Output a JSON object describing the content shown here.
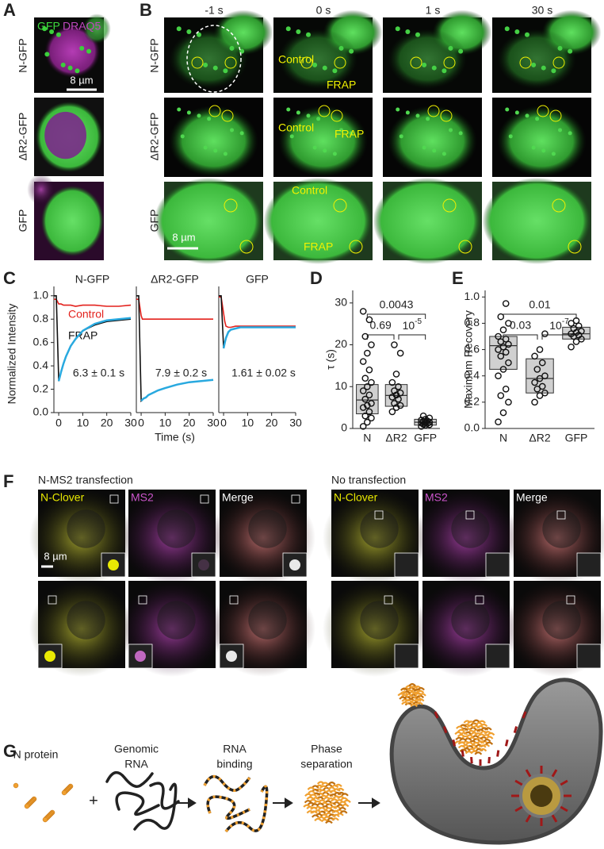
{
  "panel_labels": [
    "A",
    "B",
    "C",
    "D",
    "E",
    "F",
    "G"
  ],
  "panel_a": {
    "legend": [
      "GFP",
      "DRAQ5"
    ],
    "rows": [
      "N-GFP",
      "ΔR2-GFP",
      "GFP"
    ],
    "scale_bar": "8 µm"
  },
  "panel_b": {
    "columns": [
      "-1 s",
      "0 s",
      "1 s",
      "30 s"
    ],
    "rows": [
      {
        "label": "N-GFP",
        "annotations": [
          "Control",
          "FRAP"
        ]
      },
      {
        "label": "ΔR2-GFP",
        "annotations": [
          "Control",
          "FRAP"
        ]
      },
      {
        "label": "GFP",
        "annotations": [
          "Control",
          "FRAP"
        ]
      }
    ],
    "scale_bar": "8 µm"
  },
  "panel_f": {
    "groups": [
      {
        "title": "N-MS2 transfection",
        "columns": [
          "N-Clover",
          "MS2",
          "Merge"
        ]
      },
      {
        "title": "No transfection",
        "columns": [
          "N-Clover",
          "MS2",
          "Merge"
        ]
      }
    ],
    "scale_bar": "8 µm"
  },
  "panel_g": {
    "steps": [
      [
        "N protein"
      ],
      [
        "Genomic",
        "RNA"
      ],
      [
        "RNA",
        "binding"
      ],
      [
        "Phase",
        "separation"
      ]
    ],
    "plus": "+"
  },
  "chart_data": [
    {
      "type": "line",
      "title": "N-GFP",
      "annotation": "6.3 ± 0.1 s",
      "y_label": "Normalized Intensity",
      "x": [
        -2,
        -1,
        0,
        0.5,
        1,
        2,
        3,
        5,
        7,
        10,
        15,
        20,
        25,
        30
      ],
      "xlim": [
        -2,
        30
      ],
      "xticks": [
        0,
        10,
        20,
        30
      ],
      "ylim": [
        0,
        1.08
      ],
      "yticks": [
        {
          "value": 0,
          "label": "0.0"
        },
        {
          "value": 0.2,
          "label": "0.2"
        },
        {
          "value": 0.4,
          "label": "0.4"
        },
        {
          "value": 0.6,
          "label": "0.6"
        },
        {
          "value": 0.8,
          "label": "0.8"
        },
        {
          "value": 1,
          "label": "1.0"
        }
      ],
      "series": [
        {
          "name": "Control",
          "color": "#e3211c",
          "values": [
            0.97,
            0.97,
            0.93,
            0.93,
            0.93,
            0.92,
            0.92,
            0.92,
            0.91,
            0.92,
            0.92,
            0.91,
            0.91,
            0.92
          ]
        },
        {
          "name": "FRAP",
          "color": "#111111",
          "values": [
            1.0,
            1.0,
            0.27,
            0.31,
            0.35,
            0.42,
            0.48,
            0.57,
            0.63,
            0.7,
            0.75,
            0.78,
            0.79,
            0.8
          ]
        },
        {
          "color": "#29a9df",
          "values": [
            null,
            null,
            0.27,
            0.31,
            0.35,
            0.42,
            0.48,
            0.57,
            0.63,
            0.7,
            0.76,
            0.79,
            0.8,
            0.81
          ]
        }
      ]
    },
    {
      "type": "line",
      "title": "ΔR2-GFP",
      "annotation": "7.9 ± 0.2 s",
      "x_label": "Time (s)",
      "x": [
        -2,
        -1,
        0,
        0.5,
        1,
        2,
        3,
        5,
        7,
        10,
        15,
        20,
        25,
        30
      ],
      "xlim": [
        -2,
        30
      ],
      "xticks": [
        0,
        10,
        20,
        30
      ],
      "ylim": [
        0,
        1.08
      ],
      "series": [
        {
          "color": "#e3211c",
          "values": [
            0.97,
            0.97,
            0.83,
            0.8,
            0.8,
            0.8,
            0.8,
            0.8,
            0.8,
            0.8,
            0.8,
            0.8,
            0.8,
            0.8
          ]
        },
        {
          "color": "#111111",
          "values": [
            1.0,
            1.0,
            0.1,
            0.11,
            0.12,
            0.13,
            0.15,
            0.17,
            0.19,
            0.21,
            0.24,
            0.26,
            0.27,
            0.28
          ]
        },
        {
          "color": "#29a9df",
          "values": [
            null,
            null,
            0.1,
            0.11,
            0.12,
            0.13,
            0.15,
            0.17,
            0.19,
            0.21,
            0.24,
            0.26,
            0.27,
            0.28
          ]
        }
      ]
    },
    {
      "type": "line",
      "title": "GFP",
      "annotation": "1.61 ± 0.02 s",
      "x": [
        -2,
        -1,
        0,
        0.5,
        1,
        2,
        3,
        5,
        7,
        10,
        15,
        20,
        25,
        30
      ],
      "xlim": [
        -2,
        30
      ],
      "xticks": [
        0,
        10,
        20,
        30
      ],
      "ylim": [
        0,
        1.08
      ],
      "series": [
        {
          "color": "#e3211c",
          "values": [
            0.99,
            0.99,
            0.85,
            0.78,
            0.74,
            0.73,
            0.73,
            0.74,
            0.74,
            0.74,
            0.74,
            0.74,
            0.74,
            0.74
          ]
        },
        {
          "color": "#111111",
          "values": [
            1.0,
            1.0,
            0.55,
            0.6,
            0.64,
            0.69,
            0.71,
            0.72,
            0.73,
            0.73,
            0.73,
            0.73,
            0.73,
            0.73
          ]
        },
        {
          "color": "#29a9df",
          "values": [
            null,
            null,
            0.55,
            0.6,
            0.64,
            0.69,
            0.71,
            0.72,
            0.73,
            0.73,
            0.73,
            0.73,
            0.73,
            0.73
          ]
        }
      ]
    },
    {
      "type": "box",
      "y_label": "τ (s)",
      "categories": [
        "N",
        "ΔR2",
        "GFP"
      ],
      "ylim": [
        0,
        33
      ],
      "yticks": [
        0,
        10,
        20,
        30
      ],
      "color": "#d0d0d0",
      "boxes": [
        {
          "q1": 3.5,
          "median": 6.8,
          "q3": 10.5
        },
        {
          "q1": 5.3,
          "median": 7.9,
          "q3": 10.5
        },
        {
          "q1": 0.8,
          "median": 1.5,
          "q3": 2.2
        }
      ],
      "points": [
        [
          0.5,
          1.5,
          2.5,
          3,
          4,
          5,
          5.5,
          6,
          7,
          8,
          9,
          10,
          11,
          12,
          14,
          16,
          18,
          20,
          22,
          26,
          28
        ],
        [
          4,
          5,
          5.5,
          6,
          7,
          7.5,
          8,
          8.5,
          9,
          10,
          11,
          13,
          18,
          20
        ],
        [
          0.5,
          0.8,
          0.9,
          1,
          1.2,
          1.3,
          1.4,
          1.5,
          1.6,
          1.8,
          2,
          2.2,
          2.5,
          3
        ]
      ],
      "brackets": [
        {
          "label": "0.0043"
        },
        {
          "label": "0.69"
        },
        {
          "label": {
            "base": "10",
            "exponent": "-5"
          }
        }
      ]
    },
    {
      "type": "box",
      "y_label": "Maximum Recovery",
      "categories": [
        "N",
        "ΔR2",
        "GFP"
      ],
      "ylim": [
        0,
        1.05
      ],
      "yticks": [
        {
          "value": 0,
          "label": "0.0"
        },
        {
          "value": 0.2,
          "label": "0.2"
        },
        {
          "value": 0.4,
          "label": "0.4"
        },
        {
          "value": 0.6,
          "label": "0.6"
        },
        {
          "value": 0.8,
          "label": "0.8"
        },
        {
          "value": 1,
          "label": "1.0"
        }
      ],
      "color": "#d0d0d0",
      "boxes": [
        {
          "q1": 0.45,
          "median": 0.63,
          "q3": 0.7
        },
        {
          "q1": 0.27,
          "median": 0.38,
          "q3": 0.53
        },
        {
          "q1": 0.68,
          "median": 0.72,
          "q3": 0.77
        }
      ],
      "points": [
        [
          0.05,
          0.12,
          0.2,
          0.25,
          0.3,
          0.4,
          0.45,
          0.5,
          0.55,
          0.58,
          0.6,
          0.62,
          0.64,
          0.66,
          0.68,
          0.7,
          0.75,
          0.8,
          0.85,
          0.95
        ],
        [
          0.2,
          0.25,
          0.27,
          0.3,
          0.32,
          0.35,
          0.38,
          0.4,
          0.45,
          0.5,
          0.55,
          0.6,
          0.72
        ],
        [
          0.62,
          0.66,
          0.68,
          0.7,
          0.71,
          0.72,
          0.73,
          0.74,
          0.76,
          0.78,
          0.8,
          0.82
        ]
      ],
      "brackets": [
        {
          "label": "0.01"
        },
        {
          "label": "0.03"
        },
        {
          "label": {
            "base": "10",
            "exponent": "-7"
          }
        }
      ]
    }
  ]
}
